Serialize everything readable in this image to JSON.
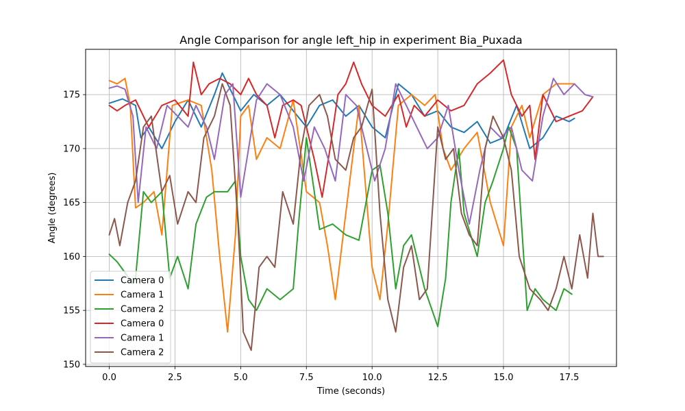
{
  "chart_data": {
    "type": "line",
    "title": "Angle Comparison for angle left_hip in experiment Bia_Puxada",
    "xlabel": "Time (seconds)",
    "ylabel": "Angle (degrees)",
    "xlim": [
      -0.9,
      19.3
    ],
    "ylim": [
      149.8,
      179.2
    ],
    "xticks": [
      0.0,
      2.5,
      5.0,
      7.5,
      10.0,
      12.5,
      15.0,
      17.5
    ],
    "xtick_labels": [
      "0.0",
      "2.5",
      "5.0",
      "7.5",
      "10.0",
      "12.5",
      "15.0",
      "17.5"
    ],
    "yticks": [
      150,
      155,
      160,
      165,
      170,
      175
    ],
    "ytick_labels": [
      "150",
      "155",
      "160",
      "165",
      "170",
      "175"
    ],
    "grid": true,
    "legend_position": "lower-left",
    "series": [
      {
        "name": "Camera 0",
        "color": "#1f77b4",
        "points": [
          [
            0.0,
            174.2
          ],
          [
            0.5,
            174.6
          ],
          [
            1.0,
            174.0
          ],
          [
            1.2,
            171.0
          ],
          [
            1.5,
            172.0
          ],
          [
            2.0,
            170.0
          ],
          [
            2.5,
            172.5
          ],
          [
            3.0,
            174.5
          ],
          [
            3.5,
            172.0
          ],
          [
            4.0,
            175.0
          ],
          [
            4.3,
            177.0
          ],
          [
            4.7,
            175.0
          ],
          [
            5.0,
            173.5
          ],
          [
            5.5,
            175.0
          ],
          [
            6.0,
            174.0
          ],
          [
            6.5,
            175.0
          ],
          [
            7.0,
            173.5
          ],
          [
            7.5,
            172.0
          ],
          [
            8.0,
            174.0
          ],
          [
            8.5,
            174.5
          ],
          [
            9.0,
            173.0
          ],
          [
            9.5,
            174.0
          ],
          [
            10.0,
            172.0
          ],
          [
            10.5,
            171.0
          ],
          [
            11.0,
            176.0
          ],
          [
            11.5,
            175.0
          ],
          [
            12.0,
            173.0
          ],
          [
            12.5,
            173.5
          ],
          [
            13.0,
            172.0
          ],
          [
            13.5,
            171.5
          ],
          [
            14.0,
            172.5
          ],
          [
            14.5,
            170.5
          ],
          [
            15.0,
            171.0
          ],
          [
            15.5,
            174.0
          ],
          [
            16.0,
            170.0
          ],
          [
            16.5,
            171.0
          ],
          [
            17.0,
            173.0
          ],
          [
            17.5,
            172.5
          ],
          [
            17.7,
            172.8
          ]
        ]
      },
      {
        "name": "Camera 1",
        "color": "#ff7f0e",
        "points": [
          [
            0.0,
            176.3
          ],
          [
            0.3,
            176.0
          ],
          [
            0.6,
            176.5
          ],
          [
            0.8,
            174.0
          ],
          [
            1.0,
            164.5
          ],
          [
            1.3,
            165.0
          ],
          [
            1.7,
            166.0
          ],
          [
            2.0,
            162.0
          ],
          [
            2.4,
            174.0
          ],
          [
            3.0,
            174.5
          ],
          [
            3.5,
            174.0
          ],
          [
            3.9,
            168.0
          ],
          [
            4.2,
            160.0
          ],
          [
            4.5,
            153.0
          ],
          [
            4.8,
            162.0
          ],
          [
            5.0,
            173.0
          ],
          [
            5.3,
            174.0
          ],
          [
            5.6,
            169.0
          ],
          [
            6.0,
            171.0
          ],
          [
            6.5,
            170.0
          ],
          [
            7.0,
            174.5
          ],
          [
            7.5,
            166.0
          ],
          [
            8.0,
            165.0
          ],
          [
            8.3,
            161.0
          ],
          [
            8.6,
            156.0
          ],
          [
            9.0,
            164.0
          ],
          [
            9.5,
            174.0
          ],
          [
            10.0,
            159.0
          ],
          [
            10.3,
            156.0
          ],
          [
            10.6,
            163.0
          ],
          [
            11.0,
            174.0
          ],
          [
            11.5,
            175.0
          ],
          [
            12.0,
            174.0
          ],
          [
            12.4,
            175.0
          ],
          [
            12.7,
            170.0
          ],
          [
            13.0,
            168.0
          ],
          [
            13.5,
            170.0
          ],
          [
            14.0,
            171.5
          ],
          [
            14.5,
            165.0
          ],
          [
            15.0,
            161.0
          ],
          [
            15.3,
            172.0
          ],
          [
            15.7,
            174.0
          ],
          [
            16.0,
            171.0
          ],
          [
            16.5,
            175.0
          ],
          [
            17.0,
            176.0
          ],
          [
            17.5,
            176.0
          ],
          [
            17.7,
            176.0
          ]
        ]
      },
      {
        "name": "Camera 2",
        "color": "#2ca02c",
        "points": [
          [
            0.0,
            160.2
          ],
          [
            0.3,
            159.5
          ],
          [
            0.6,
            158.5
          ],
          [
            0.9,
            157.5
          ],
          [
            1.0,
            158.0
          ],
          [
            1.3,
            166.0
          ],
          [
            1.6,
            165.0
          ],
          [
            2.0,
            166.0
          ],
          [
            2.3,
            158.0
          ],
          [
            2.6,
            160.0
          ],
          [
            3.0,
            157.0
          ],
          [
            3.3,
            163.0
          ],
          [
            3.7,
            165.5
          ],
          [
            4.0,
            166.0
          ],
          [
            4.5,
            166.0
          ],
          [
            4.8,
            167.0
          ],
          [
            5.0,
            160.0
          ],
          [
            5.3,
            156.0
          ],
          [
            5.6,
            155.0
          ],
          [
            6.0,
            157.0
          ],
          [
            6.5,
            156.0
          ],
          [
            7.0,
            157.0
          ],
          [
            7.2,
            163.0
          ],
          [
            7.5,
            171.0
          ],
          [
            7.8,
            166.0
          ],
          [
            8.0,
            162.5
          ],
          [
            8.5,
            163.0
          ],
          [
            9.0,
            162.0
          ],
          [
            9.5,
            161.5
          ],
          [
            10.0,
            168.0
          ],
          [
            10.3,
            168.5
          ],
          [
            10.6,
            164.0
          ],
          [
            10.9,
            157.0
          ],
          [
            11.2,
            161.0
          ],
          [
            11.5,
            162.0
          ],
          [
            12.0,
            157.0
          ],
          [
            12.5,
            153.5
          ],
          [
            12.8,
            158.0
          ],
          [
            13.0,
            165.0
          ],
          [
            13.3,
            170.0
          ],
          [
            13.5,
            164.0
          ],
          [
            14.0,
            160.0
          ],
          [
            14.3,
            165.0
          ],
          [
            14.6,
            167.0
          ],
          [
            15.0,
            170.0
          ],
          [
            15.2,
            172.0
          ],
          [
            15.5,
            170.0
          ],
          [
            15.9,
            155.0
          ],
          [
            16.2,
            157.0
          ],
          [
            16.5,
            156.0
          ],
          [
            17.0,
            155.0
          ],
          [
            17.3,
            157.0
          ],
          [
            17.6,
            156.5
          ]
        ]
      },
      {
        "name": "Camera 0",
        "color": "#d62728",
        "points": [
          [
            0.0,
            174.0
          ],
          [
            0.3,
            173.5
          ],
          [
            0.6,
            174.0
          ],
          [
            1.0,
            174.5
          ],
          [
            1.5,
            172.0
          ],
          [
            2.0,
            174.0
          ],
          [
            2.5,
            174.5
          ],
          [
            3.0,
            173.0
          ],
          [
            3.2,
            178.0
          ],
          [
            3.5,
            175.0
          ],
          [
            3.8,
            176.0
          ],
          [
            4.2,
            176.5
          ],
          [
            4.6,
            176.0
          ],
          [
            5.0,
            175.0
          ],
          [
            5.3,
            176.5
          ],
          [
            5.6,
            175.0
          ],
          [
            6.0,
            174.0
          ],
          [
            6.3,
            171.0
          ],
          [
            6.6,
            174.0
          ],
          [
            7.0,
            174.5
          ],
          [
            7.3,
            174.0
          ],
          [
            7.6,
            171.0
          ],
          [
            7.8,
            169.0
          ],
          [
            8.1,
            165.5
          ],
          [
            8.4,
            170.0
          ],
          [
            8.7,
            175.0
          ],
          [
            9.0,
            176.0
          ],
          [
            9.3,
            178.0
          ],
          [
            9.6,
            176.0
          ],
          [
            10.0,
            174.0
          ],
          [
            10.5,
            173.0
          ],
          [
            11.0,
            175.0
          ],
          [
            11.3,
            172.0
          ],
          [
            11.6,
            174.0
          ],
          [
            12.0,
            173.0
          ],
          [
            12.5,
            174.5
          ],
          [
            13.0,
            173.5
          ],
          [
            13.5,
            174.0
          ],
          [
            14.0,
            176.0
          ],
          [
            14.5,
            177.0
          ],
          [
            15.0,
            178.2
          ],
          [
            15.3,
            175.0
          ],
          [
            15.7,
            173.0
          ],
          [
            16.0,
            174.0
          ],
          [
            16.2,
            169.0
          ],
          [
            16.5,
            175.0
          ],
          [
            17.0,
            172.5
          ],
          [
            17.5,
            173.0
          ],
          [
            18.0,
            173.5
          ],
          [
            18.4,
            174.8
          ]
        ]
      },
      {
        "name": "Camera 1",
        "color": "#9467bd",
        "points": [
          [
            0.0,
            175.6
          ],
          [
            0.3,
            175.8
          ],
          [
            0.6,
            175.5
          ],
          [
            0.9,
            173.0
          ],
          [
            1.1,
            165.0
          ],
          [
            1.4,
            172.0
          ],
          [
            1.8,
            170.0
          ],
          [
            2.2,
            174.0
          ],
          [
            2.6,
            173.0
          ],
          [
            3.0,
            172.0
          ],
          [
            3.3,
            174.0
          ],
          [
            3.7,
            172.0
          ],
          [
            4.0,
            169.0
          ],
          [
            4.4,
            175.0
          ],
          [
            4.7,
            176.0
          ],
          [
            5.0,
            165.5
          ],
          [
            5.3,
            170.0
          ],
          [
            5.6,
            174.5
          ],
          [
            6.0,
            176.0
          ],
          [
            6.5,
            175.0
          ],
          [
            7.0,
            172.0
          ],
          [
            7.4,
            167.0
          ],
          [
            7.8,
            172.0
          ],
          [
            8.2,
            170.0
          ],
          [
            8.6,
            167.0
          ],
          [
            9.0,
            175.0
          ],
          [
            9.4,
            174.0
          ],
          [
            9.7,
            171.0
          ],
          [
            10.1,
            167.0
          ],
          [
            10.5,
            170.0
          ],
          [
            10.9,
            176.0
          ],
          [
            11.3,
            174.0
          ],
          [
            11.7,
            172.0
          ],
          [
            12.1,
            170.0
          ],
          [
            12.5,
            171.0
          ],
          [
            12.9,
            174.0
          ],
          [
            13.3,
            168.0
          ],
          [
            13.7,
            163.0
          ],
          [
            14.1,
            168.0
          ],
          [
            14.5,
            172.0
          ],
          [
            14.9,
            171.0
          ],
          [
            15.3,
            172.0
          ],
          [
            15.7,
            168.0
          ],
          [
            16.1,
            167.0
          ],
          [
            16.5,
            173.0
          ],
          [
            16.9,
            176.5
          ],
          [
            17.3,
            175.0
          ],
          [
            17.7,
            176.0
          ],
          [
            18.1,
            175.0
          ],
          [
            18.4,
            174.8
          ]
        ]
      },
      {
        "name": "Camera 2",
        "color": "#8c564b",
        "points": [
          [
            0.0,
            162.0
          ],
          [
            0.2,
            163.5
          ],
          [
            0.4,
            161.0
          ],
          [
            0.7,
            165.0
          ],
          [
            1.0,
            167.0
          ],
          [
            1.3,
            172.0
          ],
          [
            1.6,
            173.0
          ],
          [
            2.0,
            166.0
          ],
          [
            2.3,
            167.5
          ],
          [
            2.6,
            163.0
          ],
          [
            3.0,
            166.0
          ],
          [
            3.3,
            165.0
          ],
          [
            3.6,
            171.0
          ],
          [
            4.0,
            173.0
          ],
          [
            4.3,
            176.0
          ],
          [
            4.6,
            174.0
          ],
          [
            4.9,
            163.0
          ],
          [
            5.1,
            153.0
          ],
          [
            5.4,
            151.3
          ],
          [
            5.7,
            159.0
          ],
          [
            6.0,
            160.0
          ],
          [
            6.3,
            159.0
          ],
          [
            6.6,
            166.0
          ],
          [
            7.0,
            163.0
          ],
          [
            7.3,
            170.0
          ],
          [
            7.6,
            174.0
          ],
          [
            8.0,
            175.0
          ],
          [
            8.3,
            173.0
          ],
          [
            8.6,
            169.0
          ],
          [
            9.0,
            168.0
          ],
          [
            9.3,
            171.0
          ],
          [
            9.6,
            172.0
          ],
          [
            10.0,
            175.5
          ],
          [
            10.3,
            164.0
          ],
          [
            10.6,
            156.0
          ],
          [
            10.9,
            153.0
          ],
          [
            11.2,
            159.0
          ],
          [
            11.5,
            161.0
          ],
          [
            11.8,
            156.0
          ],
          [
            12.1,
            157.0
          ],
          [
            12.5,
            172.0
          ],
          [
            12.8,
            169.0
          ],
          [
            13.1,
            170.0
          ],
          [
            13.4,
            164.0
          ],
          [
            13.7,
            162.0
          ],
          [
            14.0,
            161.0
          ],
          [
            14.3,
            170.0
          ],
          [
            14.6,
            173.0
          ],
          [
            15.0,
            171.0
          ],
          [
            15.3,
            168.0
          ],
          [
            15.6,
            160.0
          ],
          [
            16.0,
            157.0
          ],
          [
            16.4,
            156.0
          ],
          [
            16.7,
            155.0
          ],
          [
            17.0,
            157.0
          ],
          [
            17.3,
            160.0
          ],
          [
            17.6,
            157.0
          ],
          [
            17.9,
            162.0
          ],
          [
            18.2,
            158.0
          ],
          [
            18.4,
            164.0
          ],
          [
            18.6,
            160.0
          ],
          [
            18.8,
            160.0
          ]
        ]
      }
    ]
  }
}
